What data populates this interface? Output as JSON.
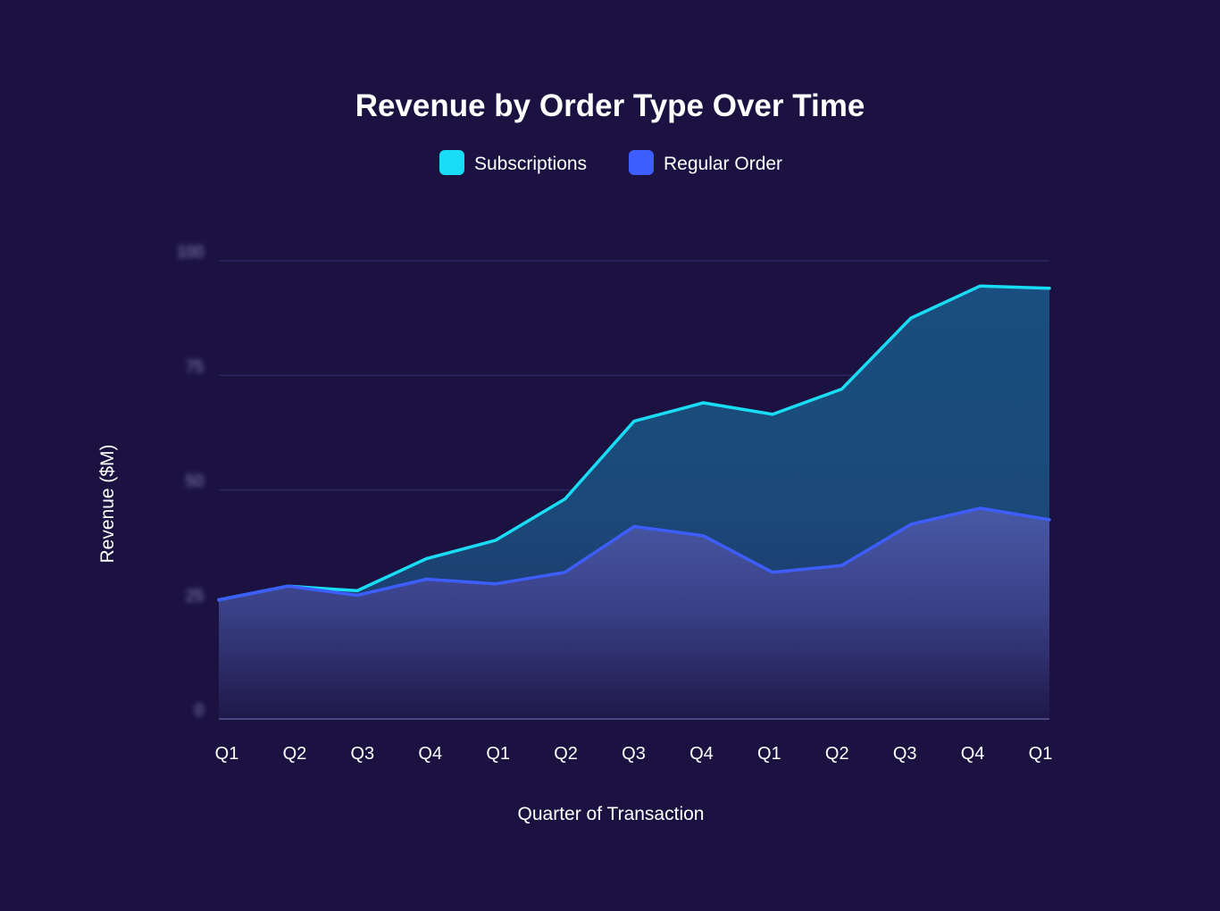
{
  "chart_data": {
    "type": "area",
    "title": "Revenue by Order Type Over Time",
    "xlabel": "Quarter of Transaction",
    "ylabel": "Revenue ($M)",
    "ylim": [
      0,
      100
    ],
    "y_ticks": [
      "0",
      "25",
      "50",
      "75",
      "100"
    ],
    "grid": true,
    "legend_position": "top-center",
    "categories": [
      "Q1",
      "Q2",
      "Q3",
      "Q4",
      "Q1",
      "Q2",
      "Q3",
      "Q4",
      "Q1",
      "Q2",
      "Q3",
      "Q4",
      "Q1"
    ],
    "series": [
      {
        "name": "Subscriptions",
        "color": "#19dcf5",
        "values": [
          26,
          29,
          28,
          35,
          39,
          48,
          65,
          69,
          66.5,
          72,
          87.5,
          94.5,
          94
        ]
      },
      {
        "name": "Regular Order",
        "color": "#3d5dfd",
        "values": [
          26,
          29,
          27,
          30.5,
          29.5,
          32,
          42,
          40,
          32,
          33.5,
          42.5,
          46,
          43.5
        ]
      }
    ]
  },
  "colors": {
    "background": "#1b1241",
    "grid": "#2c2660",
    "axis": "#4a4680",
    "text": "#ffffff"
  }
}
